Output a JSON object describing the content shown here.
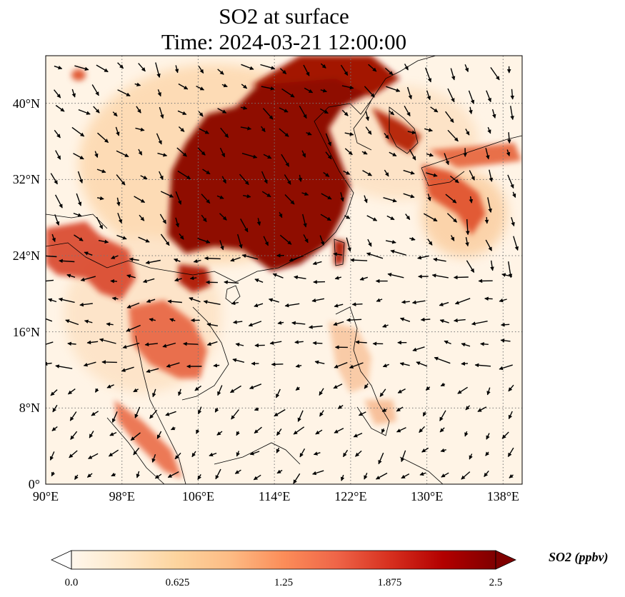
{
  "title": {
    "line1": "SO2 at surface",
    "line2": "Time: 2024-03-21 12:00:00"
  },
  "map": {
    "extent": {
      "lon_min": 90,
      "lon_max": 140,
      "lat_min": 0,
      "lat_max": 45
    },
    "gridlines": "dotted",
    "x_ticks": [
      {
        "lon": 90,
        "label": "90°E"
      },
      {
        "lon": 98,
        "label": "98°E"
      },
      {
        "lon": 106,
        "label": "106°E"
      },
      {
        "lon": 114,
        "label": "114°E"
      },
      {
        "lon": 122,
        "label": "122°E"
      },
      {
        "lon": 130,
        "label": "130°E"
      },
      {
        "lon": 138,
        "label": "138°E"
      }
    ],
    "y_ticks": [
      {
        "lat": 0,
        "label": "0°"
      },
      {
        "lat": 8,
        "label": "8°N"
      },
      {
        "lat": 16,
        "label": "16°N"
      },
      {
        "lat": 24,
        "label": "24°N"
      },
      {
        "lat": 32,
        "label": "32°N"
      },
      {
        "lat": 40,
        "label": "40°N"
      }
    ],
    "field": "SO2 concentration, high over eastern China (North China Plain to Sichuan), moderate over Korea, Japan, Indochina and Sumatra",
    "overlay": "wind vectors (black arrows)"
  },
  "colorbar": {
    "label": "SO2 (ppbv)",
    "colormap": "OrRd",
    "extend": "both",
    "min": 0.0,
    "max": 2.5,
    "ticks": [
      "0.0",
      "0.625",
      "1.25",
      "1.875",
      "2.5"
    ],
    "colors": [
      "#fff7ec",
      "#fee8c8",
      "#fdd49e",
      "#fdbb84",
      "#fc8d59",
      "#ef6548",
      "#d7301f",
      "#b30000",
      "#7f0000"
    ]
  }
}
